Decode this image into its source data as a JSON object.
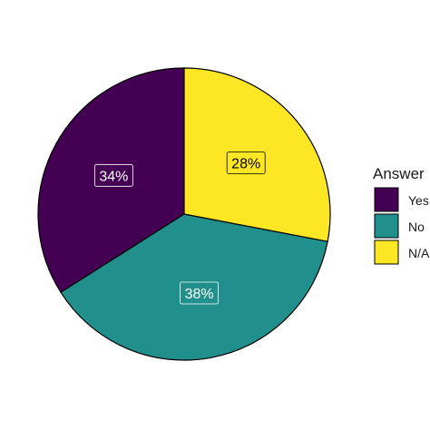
{
  "chart_data": {
    "type": "pie",
    "categories": [
      "Yes",
      "No",
      "N/A"
    ],
    "values": [
      34,
      38,
      28
    ],
    "labels": [
      "34%",
      "38%",
      "28%"
    ],
    "colors": [
      "#440154",
      "#21908C",
      "#FDE725"
    ],
    "label_text_colors": [
      "#ffffff",
      "#ffffff",
      "#000000"
    ],
    "title": "",
    "legend": {
      "title": "Answer",
      "placement": "right",
      "entries": [
        "Yes",
        "No",
        "N/A"
      ]
    }
  }
}
